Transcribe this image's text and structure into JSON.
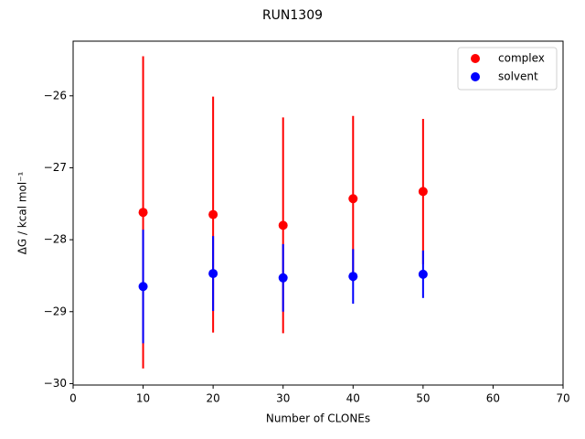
{
  "chart_data": {
    "type": "scatter",
    "title": "RUN1309",
    "xlabel": "Number of CLONEs",
    "ylabel": "ΔG / kcal mol⁻¹",
    "x": [
      10,
      20,
      30,
      40,
      50
    ],
    "series": [
      {
        "name": "complex",
        "color": "#ff0000",
        "values": [
          -27.62,
          -27.65,
          -27.8,
          -27.43,
          -27.33
        ],
        "errors": [
          2.17,
          1.64,
          1.5,
          1.15,
          1.01
        ]
      },
      {
        "name": "solvent",
        "color": "#0000ff",
        "values": [
          -28.65,
          -28.47,
          -28.53,
          -28.51,
          -28.48
        ],
        "errors": [
          0.79,
          0.52,
          0.47,
          0.38,
          0.33
        ]
      }
    ],
    "xlim": [
      0,
      70
    ],
    "xticks": [
      0,
      10,
      20,
      30,
      40,
      50,
      60,
      70
    ],
    "ylim": [
      -30.02,
      -25.24
    ],
    "yticks": [
      {
        "value": -30,
        "label": "−30"
      },
      {
        "value": -29,
        "label": "−29"
      },
      {
        "value": -28,
        "label": "−28"
      },
      {
        "value": -27,
        "label": "−27"
      },
      {
        "value": -26,
        "label": "−26"
      }
    ],
    "grid": false,
    "legend": "upper right"
  }
}
